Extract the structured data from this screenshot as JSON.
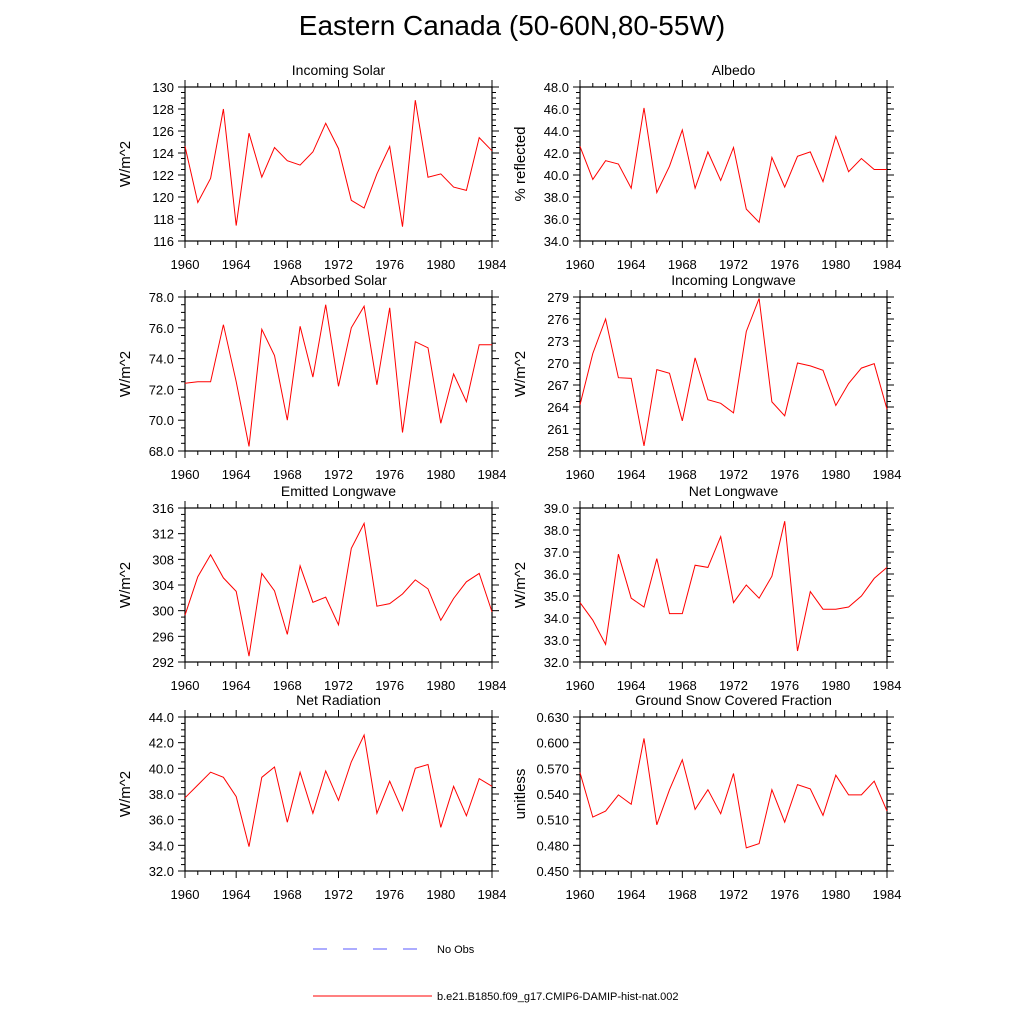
{
  "figure": {
    "title": "Eastern Canada (50-60N,80-55W)"
  },
  "legend": [
    {
      "label": "No Obs",
      "color": "#5a5aff",
      "style": "dashed"
    },
    {
      "label": "b.e21.B1850.f09_g17.CMIP6-DAMIP-hist-nat.002",
      "color": "#ff0000",
      "style": "solid"
    }
  ],
  "chart_data": [
    {
      "type": "line",
      "title": "Incoming Solar",
      "ylabel": "W/m^2",
      "xlim": [
        1960,
        1984
      ],
      "ylim": [
        116,
        130
      ],
      "xticks": [
        "1960",
        "1964",
        "1968",
        "1972",
        "1976",
        "1980",
        "1984"
      ],
      "yticks": [
        "116",
        "118",
        "120",
        "122",
        "124",
        "126",
        "128",
        "130"
      ],
      "x": [
        1960,
        1961,
        1962,
        1963,
        1964,
        1965,
        1966,
        1967,
        1968,
        1969,
        1970,
        1971,
        1972,
        1973,
        1974,
        1975,
        1976,
        1977,
        1978,
        1979,
        1980,
        1981,
        1982,
        1983,
        1984
      ],
      "series": [
        {
          "name": "b.e21.B1850.f09_g17.CMIP6-DAMIP-hist-nat.002",
          "color": "#ff0000",
          "values": [
            124.6,
            119.5,
            121.7,
            128.0,
            117.4,
            125.8,
            121.8,
            124.5,
            123.3,
            122.9,
            124.1,
            126.7,
            124.4,
            119.7,
            119.0,
            122.1,
            124.6,
            117.3,
            128.8,
            121.8,
            122.1,
            120.9,
            120.6,
            125.4,
            124.2
          ]
        }
      ]
    },
    {
      "type": "line",
      "title": "Albedo",
      "ylabel": "% reflected",
      "xlim": [
        1960,
        1984
      ],
      "ylim": [
        34,
        48
      ],
      "xticks": [
        "1960",
        "1964",
        "1968",
        "1972",
        "1976",
        "1980",
        "1984"
      ],
      "yticks": [
        "34.0",
        "36.0",
        "38.0",
        "40.0",
        "42.0",
        "44.0",
        "46.0",
        "48.0"
      ],
      "x": [
        1960,
        1961,
        1962,
        1963,
        1964,
        1965,
        1966,
        1967,
        1968,
        1969,
        1970,
        1971,
        1972,
        1973,
        1974,
        1975,
        1976,
        1977,
        1978,
        1979,
        1980,
        1981,
        1982,
        1983,
        1984
      ],
      "series": [
        {
          "name": "b.e21.B1850.f09_g17.CMIP6-DAMIP-hist-nat.002",
          "color": "#ff0000",
          "values": [
            42.6,
            39.6,
            41.3,
            41.0,
            38.8,
            46.1,
            38.4,
            40.8,
            44.1,
            38.8,
            42.1,
            39.5,
            42.5,
            36.9,
            35.7,
            41.6,
            38.9,
            41.7,
            42.1,
            39.4,
            43.5,
            40.3,
            41.5,
            40.5,
            40.5
          ]
        }
      ]
    },
    {
      "type": "line",
      "title": "Absorbed Solar",
      "ylabel": "W/m^2",
      "xlim": [
        1960,
        1984
      ],
      "ylim": [
        68,
        78
      ],
      "xticks": [
        "1960",
        "1964",
        "1968",
        "1972",
        "1976",
        "1980",
        "1984"
      ],
      "yticks": [
        "68.0",
        "70.0",
        "72.0",
        "74.0",
        "76.0",
        "78.0"
      ],
      "x": [
        1960,
        1961,
        1962,
        1963,
        1964,
        1965,
        1966,
        1967,
        1968,
        1969,
        1970,
        1971,
        1972,
        1973,
        1974,
        1975,
        1976,
        1977,
        1978,
        1979,
        1980,
        1981,
        1982,
        1983,
        1984
      ],
      "series": [
        {
          "name": "b.e21.B1850.f09_g17.CMIP6-DAMIP-hist-nat.002",
          "color": "#ff0000",
          "values": [
            72.4,
            72.5,
            72.5,
            76.2,
            72.5,
            68.3,
            75.9,
            74.2,
            70.0,
            76.1,
            72.8,
            77.5,
            72.2,
            76.0,
            77.4,
            72.3,
            77.3,
            69.2,
            75.1,
            74.7,
            69.8,
            73.0,
            71.2,
            74.9,
            74.9
          ]
        }
      ]
    },
    {
      "type": "line",
      "title": "Incoming Longwave",
      "ylabel": "W/m^2",
      "xlim": [
        1960,
        1984
      ],
      "ylim": [
        258,
        279
      ],
      "xticks": [
        "1960",
        "1964",
        "1968",
        "1972",
        "1976",
        "1980",
        "1984"
      ],
      "yticks": [
        "258",
        "261",
        "264",
        "267",
        "270",
        "273",
        "276",
        "279"
      ],
      "x": [
        1960,
        1961,
        1962,
        1963,
        1964,
        1965,
        1966,
        1967,
        1968,
        1969,
        1970,
        1971,
        1972,
        1973,
        1974,
        1975,
        1976,
        1977,
        1978,
        1979,
        1980,
        1981,
        1982,
        1983,
        1984
      ],
      "series": [
        {
          "name": "b.e21.B1850.f09_g17.CMIP6-DAMIP-hist-nat.002",
          "color": "#ff0000",
          "values": [
            264.3,
            271.3,
            276.0,
            268.0,
            267.9,
            258.7,
            269.1,
            268.6,
            262.1,
            270.7,
            265.0,
            264.5,
            263.2,
            274.3,
            278.8,
            264.7,
            262.8,
            270.0,
            269.6,
            269.0,
            264.2,
            267.2,
            269.3,
            269.9,
            263.7
          ]
        }
      ]
    },
    {
      "type": "line",
      "title": "Emitted Longwave",
      "ylabel": "W/m^2",
      "xlim": [
        1960,
        1984
      ],
      "ylim": [
        292,
        316
      ],
      "xticks": [
        "1960",
        "1964",
        "1968",
        "1972",
        "1976",
        "1980",
        "1984"
      ],
      "yticks": [
        "292",
        "296",
        "300",
        "304",
        "308",
        "312",
        "316"
      ],
      "x": [
        1960,
        1961,
        1962,
        1963,
        1964,
        1965,
        1966,
        1967,
        1968,
        1969,
        1970,
        1971,
        1972,
        1973,
        1974,
        1975,
        1976,
        1977,
        1978,
        1979,
        1980,
        1981,
        1982,
        1983,
        1984
      ],
      "series": [
        {
          "name": "b.e21.B1850.f09_g17.CMIP6-DAMIP-hist-nat.002",
          "color": "#ff0000",
          "values": [
            299.3,
            305.3,
            308.7,
            305.1,
            303.0,
            292.9,
            305.8,
            303.1,
            296.3,
            307.0,
            301.3,
            302.1,
            297.8,
            309.7,
            313.6,
            300.7,
            301.1,
            302.6,
            304.8,
            303.4,
            298.5,
            301.9,
            304.5,
            305.8,
            299.8
          ]
        }
      ]
    },
    {
      "type": "line",
      "title": "Net Longwave",
      "ylabel": "W/m^2",
      "xlim": [
        1960,
        1984
      ],
      "ylim": [
        32,
        39
      ],
      "xticks": [
        "1960",
        "1964",
        "1968",
        "1972",
        "1976",
        "1980",
        "1984"
      ],
      "yticks": [
        "32.0",
        "33.0",
        "34.0",
        "35.0",
        "36.0",
        "37.0",
        "38.0",
        "39.0"
      ],
      "x": [
        1960,
        1961,
        1962,
        1963,
        1964,
        1965,
        1966,
        1967,
        1968,
        1969,
        1970,
        1971,
        1972,
        1973,
        1974,
        1975,
        1976,
        1977,
        1978,
        1979,
        1980,
        1981,
        1982,
        1983,
        1984
      ],
      "series": [
        {
          "name": "b.e21.B1850.f09_g17.CMIP6-DAMIP-hist-nat.002",
          "color": "#ff0000",
          "values": [
            34.7,
            33.9,
            32.8,
            36.9,
            34.9,
            34.5,
            36.7,
            34.2,
            34.2,
            36.4,
            36.3,
            37.7,
            34.7,
            35.5,
            34.9,
            35.9,
            38.4,
            32.5,
            35.2,
            34.4,
            34.4,
            34.5,
            35.0,
            35.8,
            36.3
          ]
        }
      ]
    },
    {
      "type": "line",
      "title": "Net Radiation",
      "ylabel": "W/m^2",
      "xlim": [
        1960,
        1984
      ],
      "ylim": [
        32,
        44
      ],
      "xticks": [
        "1960",
        "1964",
        "1968",
        "1972",
        "1976",
        "1980",
        "1984"
      ],
      "yticks": [
        "32.0",
        "34.0",
        "36.0",
        "38.0",
        "40.0",
        "42.0",
        "44.0"
      ],
      "x": [
        1960,
        1961,
        1962,
        1963,
        1964,
        1965,
        1966,
        1967,
        1968,
        1969,
        1970,
        1971,
        1972,
        1973,
        1974,
        1975,
        1976,
        1977,
        1978,
        1979,
        1980,
        1981,
        1982,
        1983,
        1984
      ],
      "series": [
        {
          "name": "b.e21.B1850.f09_g17.CMIP6-DAMIP-hist-nat.002",
          "color": "#ff0000",
          "values": [
            37.7,
            38.7,
            39.7,
            39.3,
            37.8,
            33.9,
            39.3,
            40.1,
            35.8,
            39.7,
            36.5,
            39.8,
            37.5,
            40.5,
            42.6,
            36.5,
            39.0,
            36.7,
            40.0,
            40.3,
            35.4,
            38.6,
            36.3,
            39.2,
            38.6
          ]
        }
      ]
    },
    {
      "type": "line",
      "title": "Ground Snow Covered Fraction",
      "ylabel": "unitless",
      "xlim": [
        1960,
        1984
      ],
      "ylim": [
        0.45,
        0.63
      ],
      "xticks": [
        "1960",
        "1964",
        "1968",
        "1972",
        "1976",
        "1980",
        "1984"
      ],
      "yticks": [
        "0.450",
        "0.480",
        "0.510",
        "0.540",
        "0.570",
        "0.600",
        "0.630"
      ],
      "x": [
        1960,
        1961,
        1962,
        1963,
        1964,
        1965,
        1966,
        1967,
        1968,
        1969,
        1970,
        1971,
        1972,
        1973,
        1974,
        1975,
        1976,
        1977,
        1978,
        1979,
        1980,
        1981,
        1982,
        1983,
        1984
      ],
      "series": [
        {
          "name": "b.e21.B1850.f09_g17.CMIP6-DAMIP-hist-nat.002",
          "color": "#ff0000",
          "values": [
            0.565,
            0.513,
            0.52,
            0.539,
            0.528,
            0.605,
            0.504,
            0.545,
            0.58,
            0.522,
            0.545,
            0.517,
            0.564,
            0.477,
            0.482,
            0.545,
            0.507,
            0.551,
            0.546,
            0.515,
            0.562,
            0.539,
            0.539,
            0.555,
            0.52
          ]
        }
      ]
    }
  ]
}
